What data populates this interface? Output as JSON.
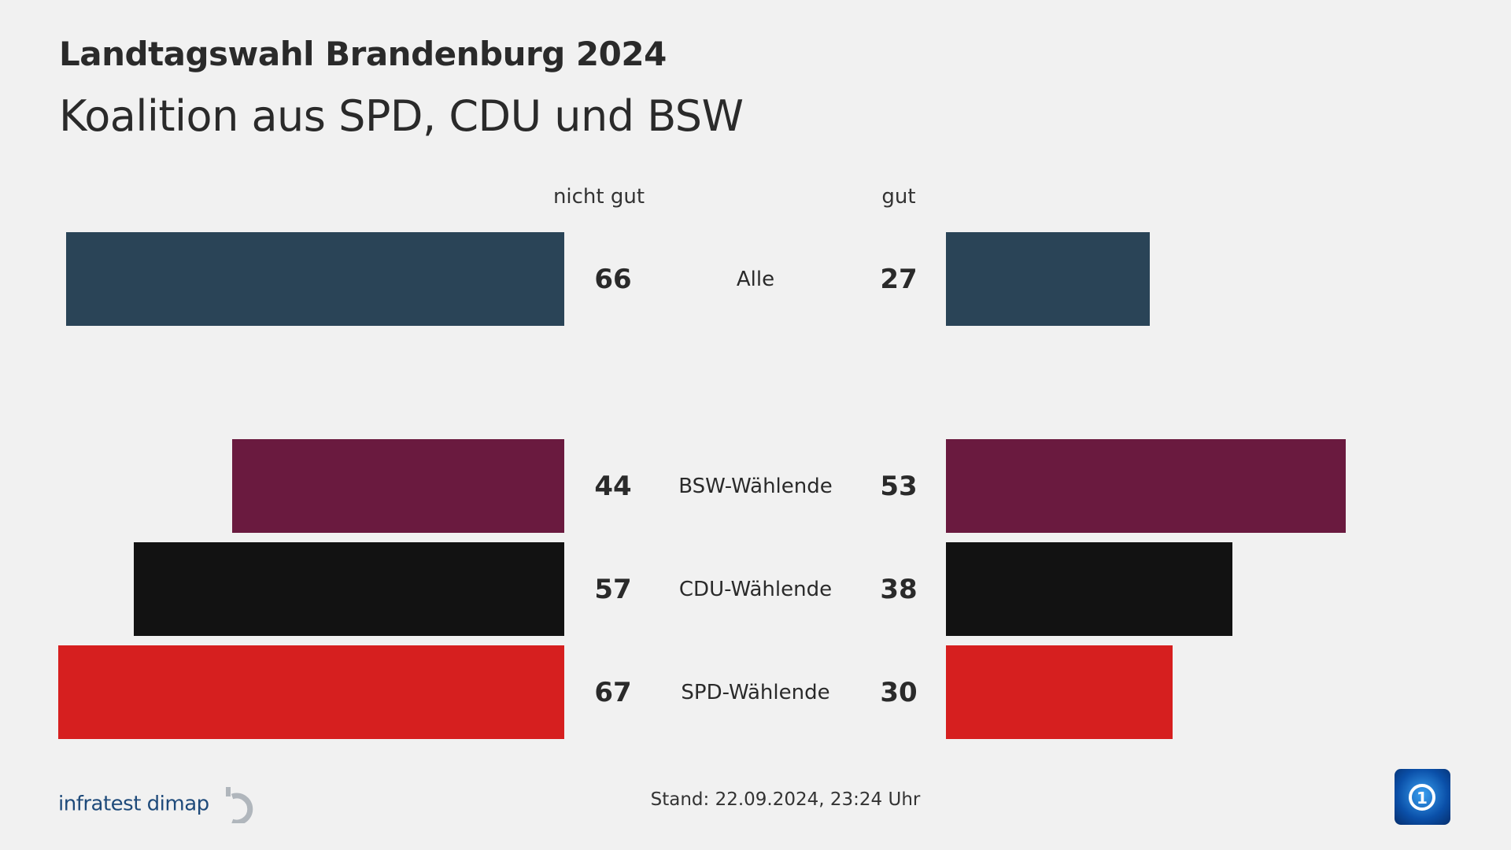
{
  "header": {
    "title": "Landtagswahl Brandenburg 2024",
    "subtitle": "Koalition aus SPD, CDU und BSW"
  },
  "chart_data": {
    "type": "bar",
    "orientation": "diverging-horizontal",
    "column_headers": {
      "left": "nicht gut",
      "right": "gut"
    },
    "categories": [
      "Alle",
      "BSW-Wählende",
      "CDU-Wählende",
      "SPD-Wählende"
    ],
    "series": [
      {
        "name": "nicht gut",
        "values": [
          66,
          44,
          57,
          67
        ]
      },
      {
        "name": "gut",
        "values": [
          27,
          53,
          38,
          30
        ]
      }
    ],
    "colors": [
      "#2a4457",
      "#6a1a3f",
      "#121212",
      "#d61f1f"
    ],
    "xlim": [
      0,
      100
    ],
    "grid": false
  },
  "footer": {
    "source": "infratest dimap",
    "stand": "Stand:  22.09.2024, 23:24 Uhr",
    "broadcaster_logo": "ard-tagesschau-logo"
  }
}
